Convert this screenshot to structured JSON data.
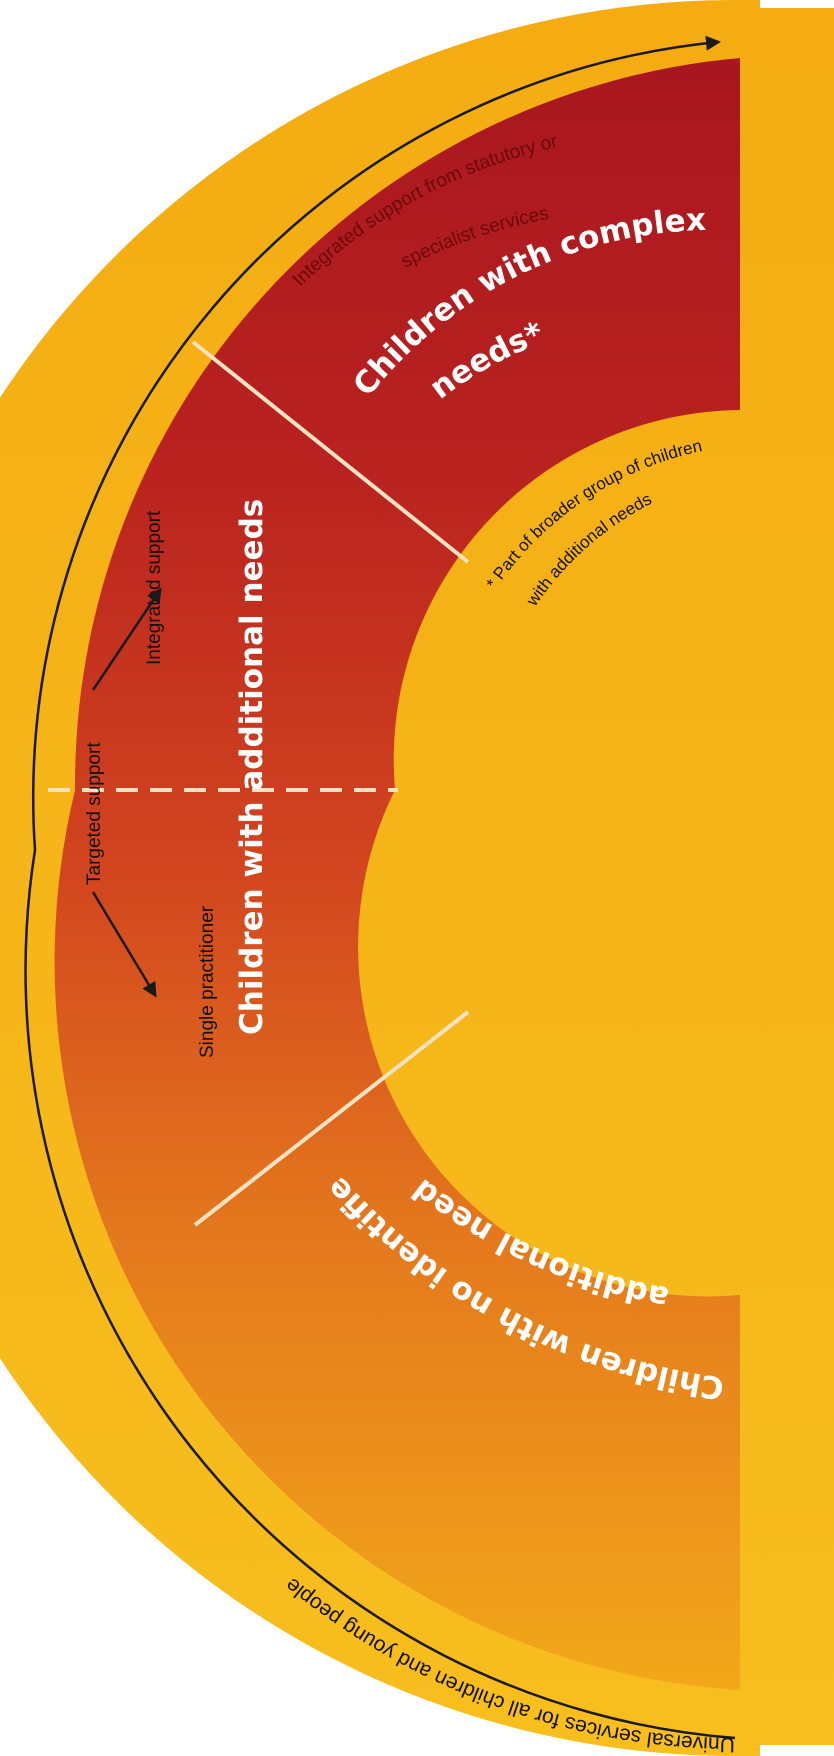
{
  "diagram": {
    "outer_band_text": "Universal services for all children and young people",
    "segments": {
      "complex": {
        "title_line1": "Children with complex",
        "title_line2": "needs*",
        "sub_line1": "Integrated support from statutory or",
        "sub_line2": "specialist services"
      },
      "additional": {
        "title": "Children with additional needs",
        "targeted_label": "Targeted support",
        "integrated_label": "Integrated support",
        "single_label": "Single practitioner"
      },
      "none": {
        "title_line1": "Children with no identified",
        "title_line2": "additional needs"
      }
    },
    "footnote": {
      "line1": "* Part of broader group of children",
      "line2": "with additional needs"
    },
    "colors": {
      "band": "#f6b41a",
      "complex": "#b01c22",
      "additional_top": "#c8311f",
      "additional_bottom": "#e27320",
      "none": "#f0a11c",
      "divider": "#f3e3c4",
      "arrow": "#1a1a1a"
    }
  }
}
